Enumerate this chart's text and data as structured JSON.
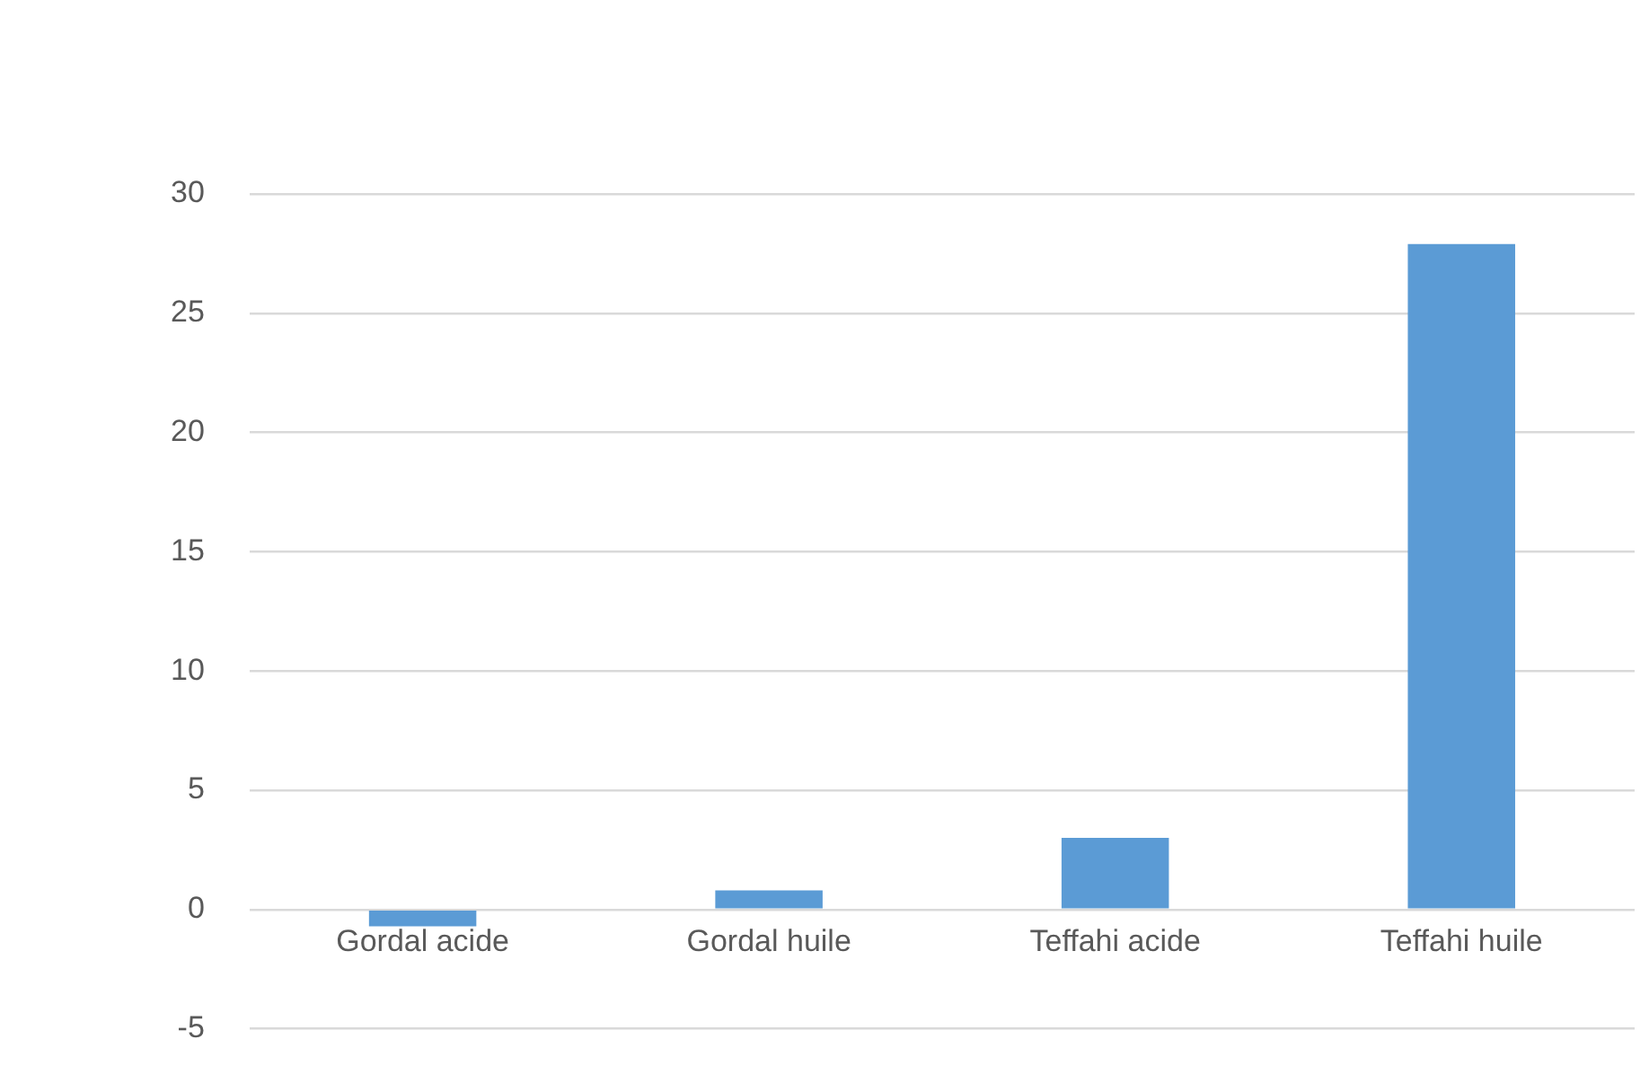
{
  "chart_data": {
    "type": "bar",
    "categories": [
      "Gordal acide",
      "Gordal huile",
      "Teffahi acide",
      "Teffahi huile"
    ],
    "values": [
      -0.7,
      0.8,
      3,
      27.9
    ],
    "color": "#5b9bd5",
    "ylim": [
      -5,
      30
    ],
    "yticks": [
      -5,
      0,
      5,
      10,
      15,
      20,
      25,
      30
    ],
    "grid": "y",
    "legend": false
  }
}
